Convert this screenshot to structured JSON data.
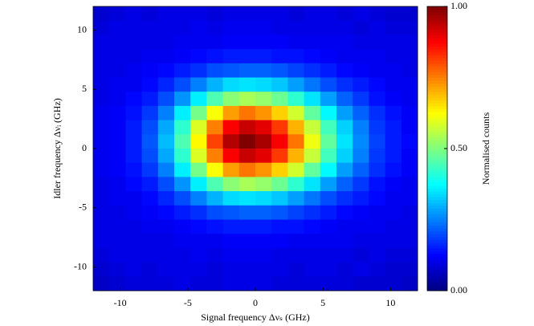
{
  "chart_data": {
    "type": "heatmap",
    "colormap": "jet",
    "xlabel": "Signal frequency Δνₛ (GHz)",
    "ylabel": "Idler frequency Δνᵢ (GHz)",
    "colorbar_label": "Normalised  counts",
    "xlim": [
      -12,
      12
    ],
    "ylim": [
      -12,
      12
    ],
    "xticks": [
      -10,
      -5,
      0,
      5,
      10
    ],
    "yticks": [
      -10,
      -5,
      0,
      5,
      10
    ],
    "clim": [
      0,
      1
    ],
    "cticks": [
      {
        "value": 0,
        "label": "0.00"
      },
      {
        "value": 0.5,
        "label": "0.50"
      },
      {
        "value": 1,
        "label": "1.00"
      }
    ],
    "x": [
      -11.4,
      -10.2,
      -9,
      -7.8,
      -6.6,
      -5.4,
      -4.2,
      -3,
      -1.8,
      -0.6,
      0.6,
      1.8,
      3,
      4.2,
      5.4,
      6.6,
      7.8,
      9,
      10.2,
      11.4
    ],
    "y": [
      11.4,
      10.2,
      9,
      7.8,
      6.6,
      5.4,
      4.2,
      3,
      1.8,
      0.6,
      -0.6,
      -1.8,
      -3,
      -4.2,
      -5.4,
      -6.6,
      -7.8,
      -9,
      -10.2,
      -11.4
    ],
    "values": [
      [
        0.08,
        0.09,
        0.1,
        0.09,
        0.1,
        0.1,
        0.1,
        0.09,
        0.1,
        0.1,
        0.1,
        0.1,
        0.09,
        0.1,
        0.1,
        0.09,
        0.1,
        0.09,
        0.08,
        0.08
      ],
      [
        0.09,
        0.1,
        0.1,
        0.1,
        0.1,
        0.1,
        0.11,
        0.1,
        0.11,
        0.11,
        0.11,
        0.1,
        0.1,
        0.1,
        0.1,
        0.1,
        0.09,
        0.1,
        0.09,
        0.09
      ],
      [
        0.1,
        0.1,
        0.1,
        0.1,
        0.1,
        0.11,
        0.11,
        0.11,
        0.12,
        0.12,
        0.12,
        0.12,
        0.11,
        0.11,
        0.11,
        0.11,
        0.1,
        0.1,
        0.1,
        0.1
      ],
      [
        0.1,
        0.1,
        0.1,
        0.11,
        0.11,
        0.12,
        0.13,
        0.14,
        0.15,
        0.15,
        0.15,
        0.14,
        0.14,
        0.13,
        0.12,
        0.11,
        0.11,
        0.11,
        0.1,
        0.1
      ],
      [
        0.1,
        0.1,
        0.11,
        0.12,
        0.13,
        0.15,
        0.17,
        0.2,
        0.21,
        0.22,
        0.22,
        0.21,
        0.19,
        0.17,
        0.15,
        0.13,
        0.12,
        0.11,
        0.11,
        0.1
      ],
      [
        0.1,
        0.11,
        0.11,
        0.13,
        0.16,
        0.2,
        0.25,
        0.3,
        0.34,
        0.35,
        0.34,
        0.32,
        0.28,
        0.24,
        0.2,
        0.17,
        0.15,
        0.13,
        0.11,
        0.11
      ],
      [
        0.1,
        0.11,
        0.13,
        0.15,
        0.2,
        0.27,
        0.36,
        0.45,
        0.51,
        0.54,
        0.52,
        0.48,
        0.42,
        0.35,
        0.28,
        0.22,
        0.18,
        0.14,
        0.12,
        0.11
      ],
      [
        0.11,
        0.12,
        0.14,
        0.18,
        0.25,
        0.36,
        0.49,
        0.62,
        0.72,
        0.76,
        0.73,
        0.67,
        0.58,
        0.47,
        0.37,
        0.28,
        0.22,
        0.17,
        0.14,
        0.12
      ],
      [
        0.11,
        0.12,
        0.15,
        0.2,
        0.29,
        0.42,
        0.59,
        0.75,
        0.88,
        0.93,
        0.9,
        0.82,
        0.7,
        0.57,
        0.44,
        0.33,
        0.25,
        0.18,
        0.15,
        0.12
      ],
      [
        0.11,
        0.12,
        0.15,
        0.21,
        0.31,
        0.45,
        0.63,
        0.81,
        0.95,
        1.0,
        0.96,
        0.88,
        0.76,
        0.61,
        0.47,
        0.35,
        0.26,
        0.19,
        0.15,
        0.13
      ],
      [
        0.11,
        0.12,
        0.15,
        0.2,
        0.29,
        0.42,
        0.59,
        0.75,
        0.88,
        0.93,
        0.9,
        0.82,
        0.7,
        0.57,
        0.44,
        0.33,
        0.25,
        0.18,
        0.15,
        0.12
      ],
      [
        0.11,
        0.12,
        0.14,
        0.18,
        0.25,
        0.36,
        0.49,
        0.62,
        0.72,
        0.76,
        0.73,
        0.67,
        0.58,
        0.47,
        0.37,
        0.28,
        0.22,
        0.17,
        0.14,
        0.12
      ],
      [
        0.1,
        0.11,
        0.13,
        0.15,
        0.2,
        0.27,
        0.36,
        0.45,
        0.51,
        0.54,
        0.52,
        0.48,
        0.42,
        0.35,
        0.28,
        0.22,
        0.18,
        0.14,
        0.12,
        0.11
      ],
      [
        0.1,
        0.11,
        0.11,
        0.13,
        0.16,
        0.2,
        0.25,
        0.3,
        0.34,
        0.35,
        0.34,
        0.32,
        0.28,
        0.24,
        0.2,
        0.17,
        0.15,
        0.13,
        0.11,
        0.11
      ],
      [
        0.1,
        0.1,
        0.11,
        0.12,
        0.13,
        0.15,
        0.17,
        0.2,
        0.21,
        0.22,
        0.22,
        0.21,
        0.19,
        0.17,
        0.15,
        0.13,
        0.12,
        0.11,
        0.11,
        0.1
      ],
      [
        0.1,
        0.1,
        0.1,
        0.11,
        0.11,
        0.12,
        0.13,
        0.14,
        0.15,
        0.15,
        0.15,
        0.14,
        0.14,
        0.13,
        0.12,
        0.11,
        0.11,
        0.11,
        0.1,
        0.1
      ],
      [
        0.1,
        0.1,
        0.1,
        0.1,
        0.1,
        0.11,
        0.11,
        0.11,
        0.12,
        0.12,
        0.12,
        0.12,
        0.11,
        0.11,
        0.11,
        0.11,
        0.1,
        0.1,
        0.1,
        0.1
      ],
      [
        0.09,
        0.1,
        0.1,
        0.1,
        0.1,
        0.1,
        0.11,
        0.1,
        0.11,
        0.11,
        0.11,
        0.1,
        0.1,
        0.1,
        0.1,
        0.1,
        0.09,
        0.1,
        0.09,
        0.09
      ],
      [
        0.08,
        0.09,
        0.1,
        0.09,
        0.1,
        0.1,
        0.1,
        0.09,
        0.1,
        0.1,
        0.1,
        0.1,
        0.09,
        0.1,
        0.1,
        0.09,
        0.1,
        0.09,
        0.08,
        0.08
      ],
      [
        0.07,
        0.08,
        0.09,
        0.09,
        0.09,
        0.1,
        0.09,
        0.09,
        0.1,
        0.1,
        0.1,
        0.09,
        0.09,
        0.09,
        0.09,
        0.09,
        0.08,
        0.08,
        0.08,
        0.07
      ]
    ]
  }
}
